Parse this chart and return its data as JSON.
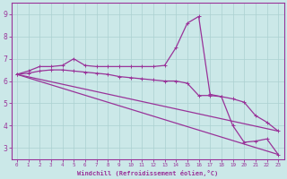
{
  "xlabel": "Windchill (Refroidissement éolien,°C)",
  "bg_color": "#cbe8e8",
  "line_color": "#993399",
  "xlim": [
    -0.5,
    23.5
  ],
  "ylim": [
    2.5,
    9.5
  ],
  "yticks": [
    3,
    4,
    5,
    6,
    7,
    8,
    9
  ],
  "xticks": [
    0,
    1,
    2,
    3,
    4,
    5,
    6,
    7,
    8,
    9,
    10,
    11,
    12,
    13,
    14,
    15,
    16,
    17,
    18,
    19,
    20,
    21,
    22,
    23
  ],
  "series1_x": [
    0,
    1,
    2,
    3,
    4,
    5,
    6,
    7,
    8,
    9,
    10,
    11,
    12,
    13,
    14,
    15,
    16,
    17,
    18,
    19,
    20,
    21,
    22,
    23
  ],
  "series1_y": [
    6.3,
    6.45,
    6.65,
    6.65,
    6.7,
    7.0,
    6.7,
    6.65,
    6.65,
    6.65,
    6.65,
    6.65,
    6.65,
    6.7,
    7.5,
    8.6,
    8.9,
    5.4,
    5.3,
    4.0,
    3.25,
    3.3,
    3.4,
    2.7
  ],
  "series2_x": [
    0,
    1,
    2,
    3,
    4,
    5,
    6,
    7,
    8,
    9,
    10,
    11,
    12,
    13,
    14,
    15,
    16,
    17,
    18,
    19,
    20,
    21,
    22,
    23
  ],
  "series2_y": [
    6.3,
    6.35,
    6.45,
    6.5,
    6.5,
    6.45,
    6.4,
    6.35,
    6.3,
    6.2,
    6.15,
    6.1,
    6.05,
    6.0,
    6.0,
    5.9,
    5.35,
    5.35,
    5.3,
    5.2,
    5.05,
    4.45,
    4.15,
    3.75
  ],
  "series3_x": [
    0,
    23
  ],
  "series3_y": [
    6.3,
    2.7
  ],
  "series4_x": [
    0,
    23
  ],
  "series4_y": [
    6.3,
    3.75
  ]
}
